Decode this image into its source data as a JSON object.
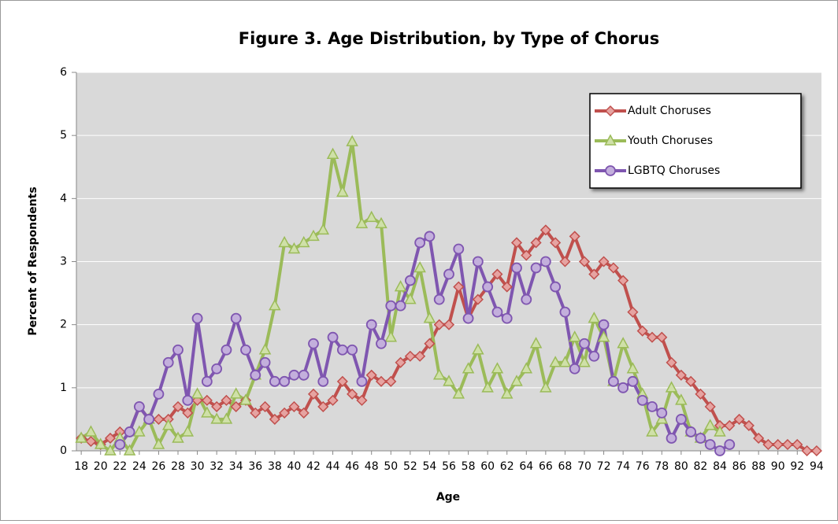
{
  "chart_data": {
    "type": "line",
    "title": "Figure 3.  Age Distribution, by Type of Chorus",
    "x_label": "Age",
    "y_label": "Percent of Respondents",
    "x": [
      18,
      19,
      20,
      21,
      22,
      23,
      24,
      25,
      26,
      27,
      28,
      29,
      30,
      31,
      32,
      33,
      34,
      35,
      36,
      37,
      38,
      39,
      40,
      41,
      42,
      43,
      44,
      45,
      46,
      47,
      48,
      49,
      50,
      51,
      52,
      53,
      54,
      55,
      56,
      57,
      58,
      59,
      60,
      61,
      62,
      63,
      64,
      65,
      66,
      67,
      68,
      69,
      70,
      71,
      72,
      73,
      74,
      75,
      76,
      77,
      78,
      79,
      80,
      81,
      82,
      83,
      84,
      85,
      86,
      87,
      88,
      89,
      90,
      91,
      92,
      93,
      94
    ],
    "series": [
      {
        "name": "Adult Choruses",
        "color": "#c0504d",
        "marker": "diamond",
        "values": [
          0.2,
          0.15,
          0.1,
          0.2,
          0.3,
          0.3,
          0.7,
          0.5,
          0.5,
          0.5,
          0.7,
          0.6,
          0.8,
          0.8,
          0.7,
          0.8,
          0.7,
          0.8,
          0.6,
          0.7,
          0.5,
          0.6,
          0.7,
          0.6,
          0.9,
          0.7,
          0.8,
          1.1,
          0.9,
          0.8,
          1.2,
          1.1,
          1.1,
          1.4,
          1.5,
          1.5,
          1.7,
          2.0,
          2.0,
          2.6,
          2.1,
          2.4,
          2.6,
          2.8,
          2.6,
          3.3,
          3.1,
          3.3,
          3.5,
          3.3,
          3.0,
          3.4,
          3.0,
          2.8,
          3.0,
          2.9,
          2.7,
          2.2,
          1.9,
          1.8,
          1.8,
          1.4,
          1.2,
          1.1,
          0.9,
          0.7,
          0.4,
          0.4,
          0.5,
          0.4,
          0.2,
          0.1,
          0.1,
          0.1,
          0.1,
          0,
          0
        ]
      },
      {
        "name": "Youth Choruses",
        "color": "#9bbb59",
        "marker": "triangle",
        "values": [
          0.2,
          0.3,
          0.1,
          0,
          0.2,
          0,
          0.3,
          0.5,
          0.1,
          0.4,
          0.2,
          0.3,
          0.9,
          0.6,
          0.5,
          0.5,
          0.9,
          0.8,
          1.2,
          1.6,
          2.3,
          3.3,
          3.2,
          3.3,
          3.4,
          3.5,
          4.7,
          4.1,
          4.9,
          3.6,
          3.7,
          3.6,
          1.8,
          2.6,
          2.4,
          2.9,
          2.1,
          1.2,
          1.1,
          0.9,
          1.3,
          1.6,
          1.0,
          1.3,
          0.9,
          1.1,
          1.3,
          1.7,
          1.0,
          1.4,
          1.4,
          1.8,
          1.4,
          2.1,
          1.8,
          1.1,
          1.7,
          1.3,
          0.9,
          0.3,
          0.5,
          1.0,
          0.8,
          0.3,
          0.2,
          0.4,
          0.3,
          null,
          null,
          null,
          null,
          null,
          null,
          null,
          null,
          null,
          null
        ]
      },
      {
        "name": "LGBTQ Choruses",
        "color": "#7f56b0",
        "marker": "circle",
        "values": [
          null,
          null,
          null,
          null,
          0.1,
          0.3,
          0.7,
          0.5,
          0.9,
          1.4,
          1.6,
          0.8,
          2.1,
          1.1,
          1.3,
          1.6,
          2.1,
          1.6,
          1.2,
          1.4,
          1.1,
          1.1,
          1.2,
          1.2,
          1.7,
          1.1,
          1.8,
          1.6,
          1.6,
          1.1,
          2.0,
          1.7,
          2.3,
          2.3,
          2.7,
          3.3,
          3.4,
          2.4,
          2.8,
          3.2,
          2.1,
          3.0,
          2.6,
          2.2,
          2.1,
          2.9,
          2.4,
          2.9,
          3.0,
          2.6,
          2.2,
          1.3,
          1.7,
          1.5,
          2.0,
          1.1,
          1.0,
          1.1,
          0.8,
          0.7,
          0.6,
          0.2,
          0.5,
          0.3,
          0.2,
          0.1,
          0,
          0.1,
          null,
          null,
          null,
          null,
          null,
          null,
          null,
          null,
          null
        ]
      }
    ],
    "xlim": [
      17.5,
      94.5
    ],
    "xticks": [
      18,
      20,
      22,
      24,
      26,
      28,
      30,
      32,
      34,
      36,
      38,
      40,
      42,
      44,
      46,
      48,
      50,
      52,
      54,
      56,
      58,
      60,
      62,
      64,
      66,
      68,
      70,
      72,
      74,
      76,
      78,
      80,
      82,
      84,
      86,
      88,
      90,
      92,
      94
    ],
    "ylim": [
      0,
      6
    ],
    "yticks": [
      0,
      1,
      2,
      3,
      4,
      5,
      6
    ],
    "grid": true,
    "legend": "top-right"
  }
}
